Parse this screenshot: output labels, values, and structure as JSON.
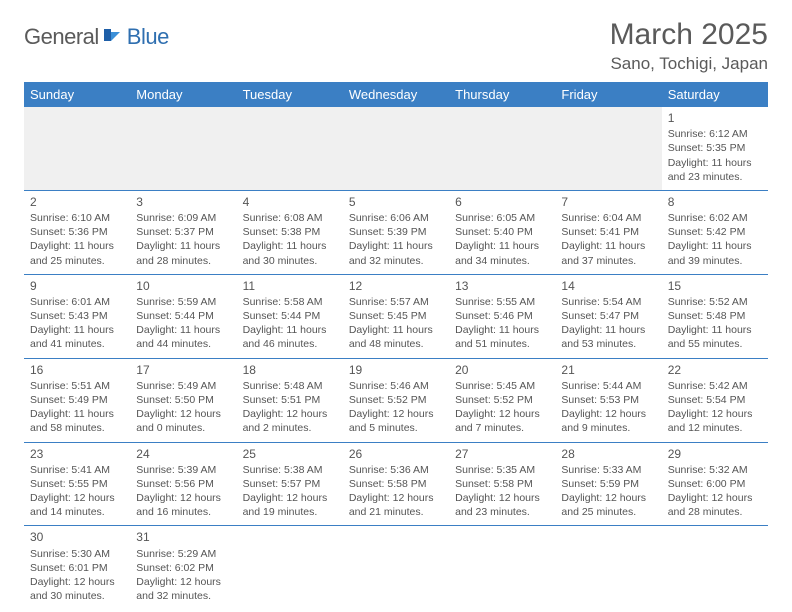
{
  "logo": {
    "part1": "General",
    "part2": "Blue"
  },
  "title": "March 2025",
  "location": "Sano, Tochigi, Japan",
  "colors": {
    "header_bg": "#3b7fc4",
    "header_text": "#ffffff",
    "accent": "#2f6fb0",
    "text": "#555555",
    "grey_row": "#f0f0f0"
  },
  "typography": {
    "title_fontsize": 30,
    "location_fontsize": 17,
    "day_header_fontsize": 13,
    "cell_fontsize": 10.5
  },
  "day_headers": [
    "Sunday",
    "Monday",
    "Tuesday",
    "Wednesday",
    "Thursday",
    "Friday",
    "Saturday"
  ],
  "weeks": [
    [
      null,
      null,
      null,
      null,
      null,
      null,
      {
        "n": "1",
        "sr": "Sunrise: 6:12 AM",
        "ss": "Sunset: 5:35 PM",
        "dl": "Daylight: 11 hours and 23 minutes."
      }
    ],
    [
      {
        "n": "2",
        "sr": "Sunrise: 6:10 AM",
        "ss": "Sunset: 5:36 PM",
        "dl": "Daylight: 11 hours and 25 minutes."
      },
      {
        "n": "3",
        "sr": "Sunrise: 6:09 AM",
        "ss": "Sunset: 5:37 PM",
        "dl": "Daylight: 11 hours and 28 minutes."
      },
      {
        "n": "4",
        "sr": "Sunrise: 6:08 AM",
        "ss": "Sunset: 5:38 PM",
        "dl": "Daylight: 11 hours and 30 minutes."
      },
      {
        "n": "5",
        "sr": "Sunrise: 6:06 AM",
        "ss": "Sunset: 5:39 PM",
        "dl": "Daylight: 11 hours and 32 minutes."
      },
      {
        "n": "6",
        "sr": "Sunrise: 6:05 AM",
        "ss": "Sunset: 5:40 PM",
        "dl": "Daylight: 11 hours and 34 minutes."
      },
      {
        "n": "7",
        "sr": "Sunrise: 6:04 AM",
        "ss": "Sunset: 5:41 PM",
        "dl": "Daylight: 11 hours and 37 minutes."
      },
      {
        "n": "8",
        "sr": "Sunrise: 6:02 AM",
        "ss": "Sunset: 5:42 PM",
        "dl": "Daylight: 11 hours and 39 minutes."
      }
    ],
    [
      {
        "n": "9",
        "sr": "Sunrise: 6:01 AM",
        "ss": "Sunset: 5:43 PM",
        "dl": "Daylight: 11 hours and 41 minutes."
      },
      {
        "n": "10",
        "sr": "Sunrise: 5:59 AM",
        "ss": "Sunset: 5:44 PM",
        "dl": "Daylight: 11 hours and 44 minutes."
      },
      {
        "n": "11",
        "sr": "Sunrise: 5:58 AM",
        "ss": "Sunset: 5:44 PM",
        "dl": "Daylight: 11 hours and 46 minutes."
      },
      {
        "n": "12",
        "sr": "Sunrise: 5:57 AM",
        "ss": "Sunset: 5:45 PM",
        "dl": "Daylight: 11 hours and 48 minutes."
      },
      {
        "n": "13",
        "sr": "Sunrise: 5:55 AM",
        "ss": "Sunset: 5:46 PM",
        "dl": "Daylight: 11 hours and 51 minutes."
      },
      {
        "n": "14",
        "sr": "Sunrise: 5:54 AM",
        "ss": "Sunset: 5:47 PM",
        "dl": "Daylight: 11 hours and 53 minutes."
      },
      {
        "n": "15",
        "sr": "Sunrise: 5:52 AM",
        "ss": "Sunset: 5:48 PM",
        "dl": "Daylight: 11 hours and 55 minutes."
      }
    ],
    [
      {
        "n": "16",
        "sr": "Sunrise: 5:51 AM",
        "ss": "Sunset: 5:49 PM",
        "dl": "Daylight: 11 hours and 58 minutes."
      },
      {
        "n": "17",
        "sr": "Sunrise: 5:49 AM",
        "ss": "Sunset: 5:50 PM",
        "dl": "Daylight: 12 hours and 0 minutes."
      },
      {
        "n": "18",
        "sr": "Sunrise: 5:48 AM",
        "ss": "Sunset: 5:51 PM",
        "dl": "Daylight: 12 hours and 2 minutes."
      },
      {
        "n": "19",
        "sr": "Sunrise: 5:46 AM",
        "ss": "Sunset: 5:52 PM",
        "dl": "Daylight: 12 hours and 5 minutes."
      },
      {
        "n": "20",
        "sr": "Sunrise: 5:45 AM",
        "ss": "Sunset: 5:52 PM",
        "dl": "Daylight: 12 hours and 7 minutes."
      },
      {
        "n": "21",
        "sr": "Sunrise: 5:44 AM",
        "ss": "Sunset: 5:53 PM",
        "dl": "Daylight: 12 hours and 9 minutes."
      },
      {
        "n": "22",
        "sr": "Sunrise: 5:42 AM",
        "ss": "Sunset: 5:54 PM",
        "dl": "Daylight: 12 hours and 12 minutes."
      }
    ],
    [
      {
        "n": "23",
        "sr": "Sunrise: 5:41 AM",
        "ss": "Sunset: 5:55 PM",
        "dl": "Daylight: 12 hours and 14 minutes."
      },
      {
        "n": "24",
        "sr": "Sunrise: 5:39 AM",
        "ss": "Sunset: 5:56 PM",
        "dl": "Daylight: 12 hours and 16 minutes."
      },
      {
        "n": "25",
        "sr": "Sunrise: 5:38 AM",
        "ss": "Sunset: 5:57 PM",
        "dl": "Daylight: 12 hours and 19 minutes."
      },
      {
        "n": "26",
        "sr": "Sunrise: 5:36 AM",
        "ss": "Sunset: 5:58 PM",
        "dl": "Daylight: 12 hours and 21 minutes."
      },
      {
        "n": "27",
        "sr": "Sunrise: 5:35 AM",
        "ss": "Sunset: 5:58 PM",
        "dl": "Daylight: 12 hours and 23 minutes."
      },
      {
        "n": "28",
        "sr": "Sunrise: 5:33 AM",
        "ss": "Sunset: 5:59 PM",
        "dl": "Daylight: 12 hours and 25 minutes."
      },
      {
        "n": "29",
        "sr": "Sunrise: 5:32 AM",
        "ss": "Sunset: 6:00 PM",
        "dl": "Daylight: 12 hours and 28 minutes."
      }
    ],
    [
      {
        "n": "30",
        "sr": "Sunrise: 5:30 AM",
        "ss": "Sunset: 6:01 PM",
        "dl": "Daylight: 12 hours and 30 minutes."
      },
      {
        "n": "31",
        "sr": "Sunrise: 5:29 AM",
        "ss": "Sunset: 6:02 PM",
        "dl": "Daylight: 12 hours and 32 minutes."
      },
      null,
      null,
      null,
      null,
      null
    ]
  ]
}
